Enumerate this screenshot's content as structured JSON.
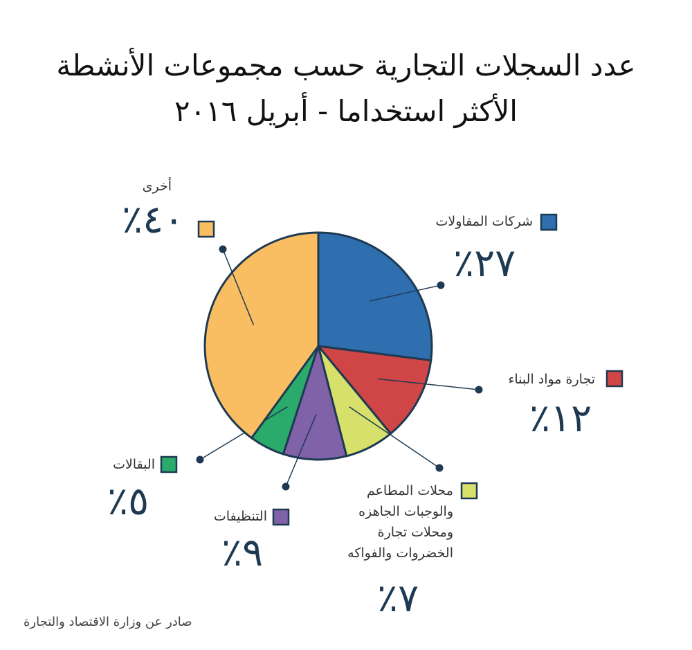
{
  "chart_data": {
    "type": "pie",
    "title": "عدد السجلات التجارية حسب مجموعات الأنشطة الأكثر استخداما - أبريل ٢٠١٦",
    "categories": [
      "شركات المقاولات",
      "تجارة مواد البناء",
      "محلات المطاعم والوجبات الجاهزه ومحلات تجارة الخضروات والفواكه",
      "التنظيفات",
      "البقالات",
      "أخرى"
    ],
    "values": [
      27,
      12,
      7,
      9,
      5,
      40
    ],
    "value_labels": [
      "٪٢٧",
      "٪١٢",
      "٪٧",
      "٪٩",
      "٪٥",
      "٪٤٠"
    ],
    "colors": [
      "#2f6faf",
      "#d04545",
      "#d6e06a",
      "#7f62a8",
      "#2aab6b",
      "#f9bd62"
    ],
    "source": "صادر عن وزارة الاقتصاد والتجارة"
  }
}
